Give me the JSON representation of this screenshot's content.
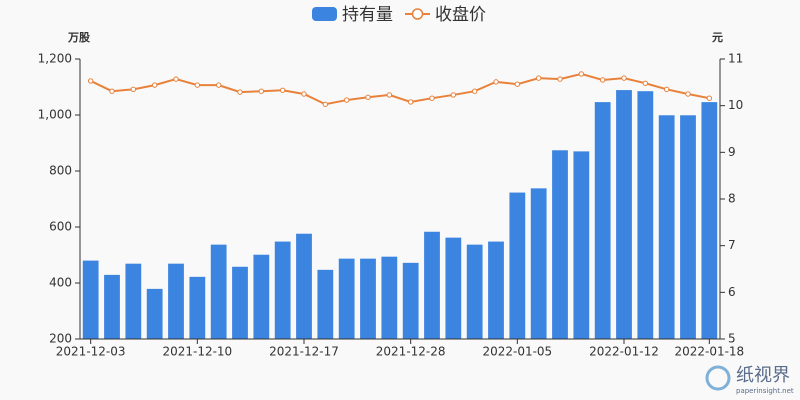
{
  "chart_data": {
    "type": "bar",
    "categories": [
      "2021-12-03",
      null,
      null,
      null,
      null,
      "2021-12-10",
      null,
      null,
      null,
      null,
      "2021-12-17",
      null,
      null,
      null,
      null,
      "2021-12-28",
      null,
      null,
      null,
      null,
      "2022-01-05",
      null,
      null,
      null,
      null,
      "2022-01-12",
      null,
      null,
      null,
      "2022-01-18"
    ],
    "series": [
      {
        "name": "持有量",
        "type": "bar",
        "color": "#3b84e0",
        "values": [
          480,
          429,
          469,
          379,
          469,
          422,
          537,
          458,
          501,
          548,
          576,
          447,
          487,
          487,
          494,
          472,
          583,
          562,
          537,
          548,
          723,
          738,
          874,
          870,
          1046,
          1089,
          1085,
          999,
          999,
          1046
        ]
      },
      {
        "name": "收盘价",
        "type": "line",
        "axis": "y2",
        "color": "#e8813a",
        "values": [
          10.53,
          10.31,
          10.35,
          10.44,
          10.57,
          10.44,
          10.44,
          10.29,
          10.31,
          10.33,
          10.25,
          10.03,
          10.12,
          10.18,
          10.23,
          10.08,
          10.16,
          10.23,
          10.31,
          10.51,
          10.46,
          10.59,
          10.57,
          10.68,
          10.55,
          10.59,
          10.48,
          10.35,
          10.25,
          10.16
        ]
      }
    ],
    "y_label": "万股",
    "y2_label": "元",
    "ylim": [
      200,
      1200
    ],
    "yticks": [
      200,
      400,
      600,
      800,
      {
        "value": 1000,
        "label": "1,000"
      },
      {
        "value": 1200,
        "label": "1,200"
      }
    ],
    "y2lim": [
      5,
      11
    ],
    "y2ticks": [
      5,
      6,
      7,
      8,
      9,
      10,
      11
    ],
    "legend": "top",
    "grid": false
  },
  "watermark": {
    "title": "纸视界",
    "url": "paperinsight.net"
  }
}
